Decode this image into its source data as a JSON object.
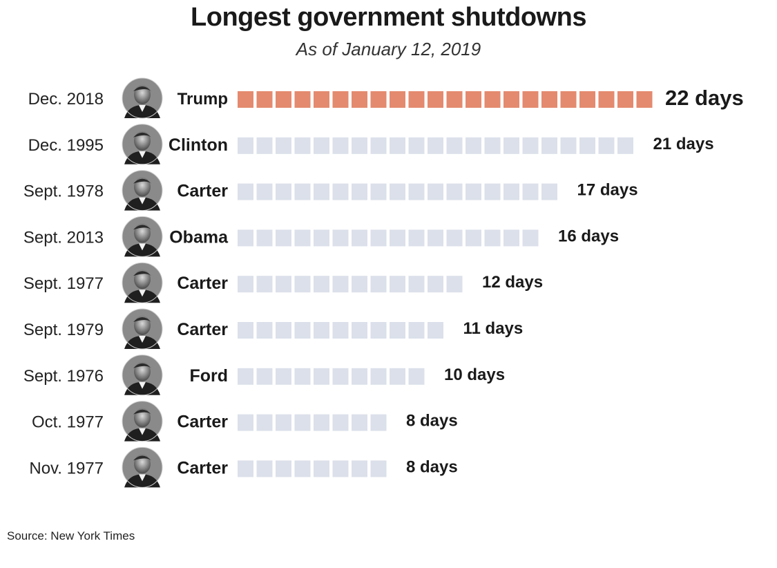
{
  "title": "Longest government shutdowns",
  "subtitle": "As of January 12, 2019",
  "source": "Source: New York Times",
  "colors": {
    "highlight": "#e48a6f",
    "default": "#dbe0ea",
    "text": "#1a1a1a"
  },
  "chart_data": {
    "type": "bar",
    "unit": "days",
    "categories": [
      "Dec. 2018",
      "Dec. 1995",
      "Sept. 1978",
      "Sept. 2013",
      "Sept. 1977",
      "Sept. 1979",
      "Sept. 1976",
      "Oct. 1977",
      "Nov. 1977"
    ],
    "presidents": [
      "Trump",
      "Clinton",
      "Carter",
      "Obama",
      "Carter",
      "Carter",
      "Ford",
      "Carter",
      "Carter"
    ],
    "values": [
      22,
      21,
      17,
      16,
      12,
      11,
      10,
      8,
      8
    ],
    "value_labels": [
      "22 days",
      "21 days",
      "17 days",
      "16 days",
      "12 days",
      "11 days",
      "10 days",
      "8 days",
      "8 days"
    ],
    "highlight_index": 0,
    "encoding": "one square per day"
  }
}
